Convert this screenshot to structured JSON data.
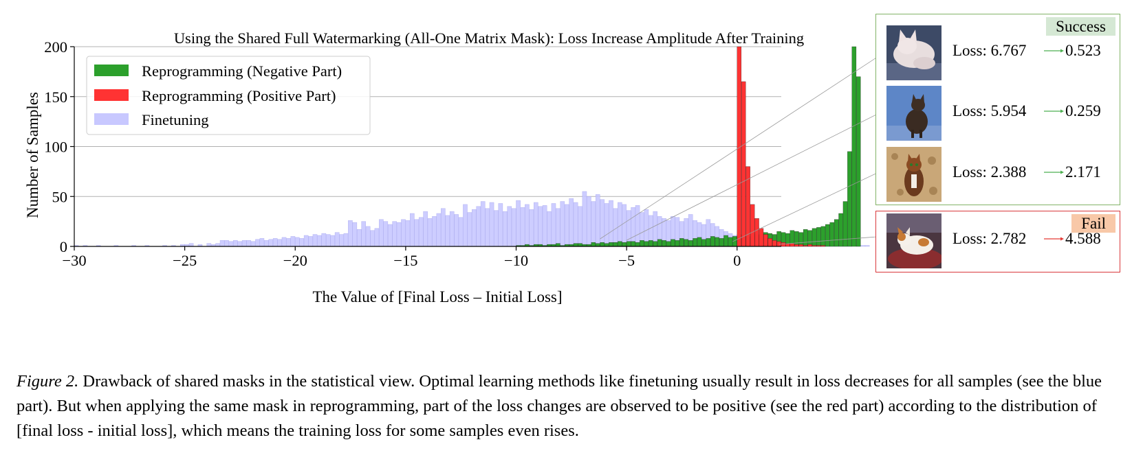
{
  "chart_data": {
    "type": "bar",
    "title": "Using the Shared Full Watermarking (All-One Matrix Mask): Loss Increase Amplitude After Training",
    "xlabel": "The Value of [Final Loss – Initial Loss]",
    "ylabel": "Number of Samples",
    "xlim": [
      -30,
      2
    ],
    "ylim": [
      0,
      200
    ],
    "xticks": [
      "−30",
      "−25",
      "−20",
      "−15",
      "−10",
      "−5",
      "0"
    ],
    "yticks": [
      "0",
      "50",
      "100",
      "150",
      "200"
    ],
    "grid": "horizontal",
    "legend_position": "top-left",
    "bin_width": 0.2,
    "series": [
      {
        "name": "Reprogramming (Negative Part)",
        "color": "#2ca02c",
        "x_start": -10.0,
        "values": [
          1,
          1,
          2,
          1,
          2,
          2,
          1,
          2,
          2,
          3,
          1,
          2,
          2,
          3,
          3,
          2,
          2,
          4,
          3,
          4,
          3,
          4,
          4,
          5,
          4,
          5,
          5,
          4,
          6,
          5,
          6,
          5,
          7,
          6,
          5,
          7,
          6,
          8,
          7,
          6,
          8,
          9,
          7,
          8,
          10,
          9,
          8,
          11,
          9,
          10,
          12,
          11,
          10,
          13,
          11,
          12,
          14,
          13,
          12,
          15,
          14,
          13,
          16,
          15,
          14,
          17,
          16,
          18,
          19,
          20,
          22,
          24,
          27,
          33,
          45,
          95,
          200,
          170
        ]
      },
      {
        "name": "Reprogramming (Positive Part)",
        "color": "#ff3333",
        "x_start": 0.0,
        "values": [
          200,
          165,
          80,
          42,
          28,
          18,
          12,
          8,
          6,
          5,
          4,
          3,
          3,
          2,
          2,
          1,
          2,
          1,
          1,
          1
        ]
      },
      {
        "name": "Finetuning",
        "color": "#c8c8ff",
        "x_start": -30.0,
        "values": [
          1,
          0,
          1,
          0,
          0,
          1,
          0,
          0,
          0,
          1,
          0,
          0,
          0,
          1,
          0,
          0,
          1,
          0,
          0,
          0,
          1,
          0,
          1,
          0,
          2,
          2,
          3,
          0,
          2,
          0,
          3,
          2,
          3,
          6,
          6,
          5,
          6,
          5,
          6,
          6,
          5,
          7,
          8,
          6,
          7,
          8,
          7,
          9,
          8,
          10,
          9,
          8,
          11,
          10,
          12,
          11,
          13,
          12,
          11,
          14,
          12,
          13,
          26,
          24,
          17,
          25,
          20,
          16,
          18,
          27,
          25,
          22,
          25,
          24,
          27,
          26,
          33,
          27,
          29,
          35,
          28,
          30,
          33,
          38,
          31,
          35,
          32,
          29,
          42,
          34,
          37,
          40,
          45,
          38,
          44,
          36,
          43,
          35,
          40,
          38,
          46,
          39,
          42,
          37,
          44,
          40,
          41,
          35,
          43,
          38,
          45,
          42,
          48,
          44,
          40,
          55,
          50,
          45,
          52,
          47,
          43,
          46,
          38,
          44,
          42,
          36,
          39,
          41,
          34,
          37,
          31,
          35,
          30,
          28,
          26,
          30,
          29,
          25,
          28,
          32,
          26,
          24,
          22,
          27,
          23,
          20,
          17,
          15,
          13,
          11,
          8,
          7,
          6,
          6,
          5,
          3,
          4,
          4,
          3,
          2,
          3,
          3,
          2,
          2,
          3,
          2,
          2,
          1,
          2,
          1,
          1,
          1,
          2,
          1,
          1,
          1,
          0,
          1,
          1,
          1
        ]
      }
    ]
  },
  "panels": {
    "success": {
      "badge": "Success",
      "accent": "#82b366",
      "samples": [
        {
          "loss_label": "Loss: 6.767",
          "after": "0.523",
          "x_value": -6.2
        },
        {
          "loss_label": "Loss: 5.954",
          "after": "0.259",
          "x_value": -5.0
        },
        {
          "loss_label": "Loss: 2.388",
          "after": "2.171",
          "x_value": -0.2
        }
      ]
    },
    "fail": {
      "badge": "Fail",
      "accent": "#d9373a",
      "samples": [
        {
          "loss_label": "Loss: 2.782",
          "after": "4.588",
          "x_value": 1.9
        }
      ]
    }
  },
  "caption": {
    "label": "Figure 2.",
    "text": " Drawback of shared masks in the statistical view. Optimal learning methods like finetuning usually result in loss decreases for all samples (see the blue part). But when applying the same mask in reprogramming, part of the loss changes are observed to be positive (see the red part) according to the distribution of [final loss - initial loss], which means the training loss for some samples even rises."
  }
}
